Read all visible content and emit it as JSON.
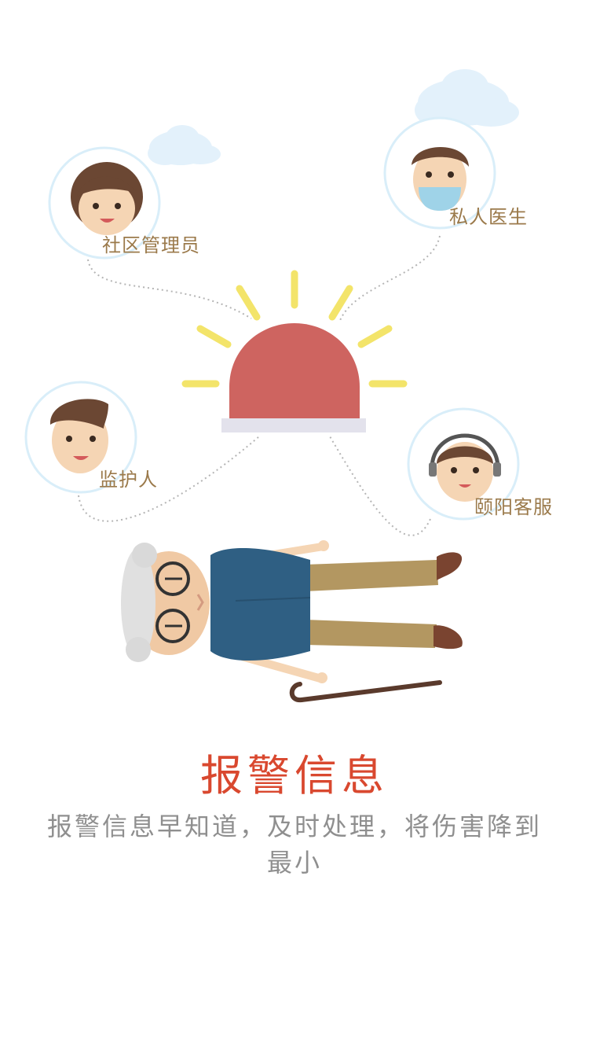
{
  "nodes": {
    "manager": "社区管理员",
    "doctor": "私人医生",
    "guardian": "监护人",
    "service": "颐阳客服"
  },
  "title": "报警信息",
  "description": "报警信息早知道，及时处理，将伤害降到最小",
  "colors": {
    "title": "#d9482f",
    "alarm": "#ce6460",
    "rays": "#f3e46a",
    "label": "#9b7a4b",
    "description": "#8f8f8f",
    "circle": "#d9eef9"
  }
}
